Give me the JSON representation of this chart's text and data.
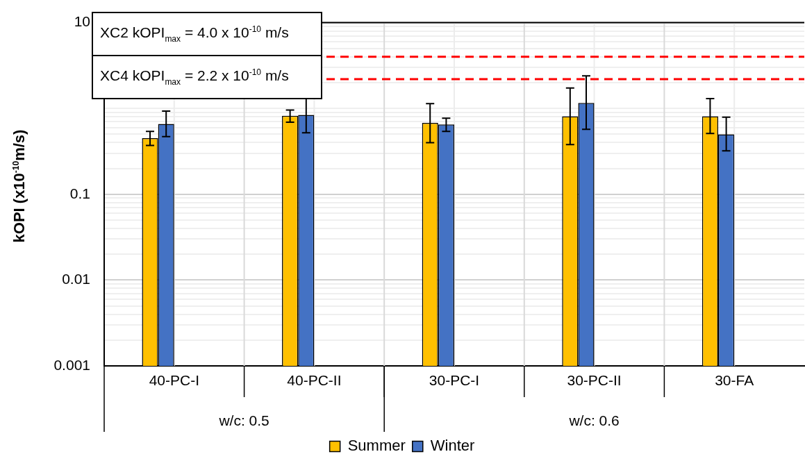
{
  "chart_data": {
    "type": "bar",
    "ylabel": "kOPI (x10$^{-10}$m/s)",
    "categories": [
      "40-PC-I",
      "40-PC-II",
      "30-PC-I",
      "30-PC-II",
      "30-FA"
    ],
    "series": [
      {
        "name": "Summer",
        "color": "#ffc000",
        "values": [
          0.45,
          0.82,
          0.68,
          0.81,
          0.81
        ],
        "errors": [
          [
            0.37,
            0.54
          ],
          [
            0.69,
            0.96
          ],
          [
            0.4,
            1.14
          ],
          [
            0.38,
            1.73
          ],
          [
            0.51,
            1.3
          ]
        ]
      },
      {
        "name": "Winter",
        "color": "#4472c4",
        "values": [
          0.66,
          0.84,
          0.65,
          1.16,
          0.5
        ],
        "errors": [
          [
            0.47,
            0.93
          ],
          [
            0.52,
            1.36
          ],
          [
            0.54,
            0.77
          ],
          [
            0.57,
            2.4
          ],
          [
            0.32,
            0.79
          ]
        ]
      }
    ],
    "log": true,
    "ylim": [
      0.001,
      10
    ],
    "yticks": [
      {
        "value": 0.001,
        "label": "0.001"
      },
      {
        "value": 0.002,
        "label": null
      },
      {
        "value": 0.003,
        "label": null
      },
      {
        "value": 0.004,
        "label": null
      },
      {
        "value": 0.005,
        "label": null
      },
      {
        "value": 0.006,
        "label": null
      },
      {
        "value": 0.007,
        "label": null
      },
      {
        "value": 0.008,
        "label": null
      },
      {
        "value": 0.009,
        "label": null
      },
      {
        "value": 0.01,
        "label": "0.01"
      },
      {
        "value": 0.02,
        "label": null
      },
      {
        "value": 0.03,
        "label": null
      },
      {
        "value": 0.04,
        "label": null
      },
      {
        "value": 0.05,
        "label": null
      },
      {
        "value": 0.06,
        "label": null
      },
      {
        "value": 0.07,
        "label": null
      },
      {
        "value": 0.08,
        "label": null
      },
      {
        "value": 0.09,
        "label": null
      },
      {
        "value": 0.1,
        "label": "0.1"
      },
      {
        "value": 0.2,
        "label": null
      },
      {
        "value": 0.3,
        "label": null
      },
      {
        "value": 0.4,
        "label": null
      },
      {
        "value": 0.5,
        "label": null
      },
      {
        "value": 0.6,
        "label": null
      },
      {
        "value": 0.7,
        "label": null
      },
      {
        "value": 0.8,
        "label": null
      },
      {
        "value": 0.9,
        "label": null
      },
      {
        "value": 1,
        "label": null
      },
      {
        "value": 2,
        "label": null
      },
      {
        "value": 3,
        "label": null
      },
      {
        "value": 4,
        "label": null
      },
      {
        "value": 5,
        "label": null
      },
      {
        "value": 6,
        "label": null
      },
      {
        "value": 7,
        "label": null
      },
      {
        "value": 8,
        "label": null
      },
      {
        "value": 9,
        "label": null
      },
      {
        "value": 10,
        "label": "10"
      }
    ],
    "ref_lines": [
      {
        "axis": "y",
        "value": 4,
        "label": "XC2 kOPI$_{max}$ = 4.0 x 10$^{-10}$ m/s",
        "color": "#ff0000",
        "line_style": "dashed"
      },
      {
        "axis": "y",
        "value": 2.2,
        "label": "XC4 kOPI$_{max}$ = 2.2 x 10$^{-10}$ m/s",
        "color": "#ff0000",
        "line_style": "dashed"
      }
    ],
    "annotations": [
      "w/c: 0.5",
      "w/c: 0.6"
    ],
    "grid": true,
    "legend": "bottom"
  }
}
